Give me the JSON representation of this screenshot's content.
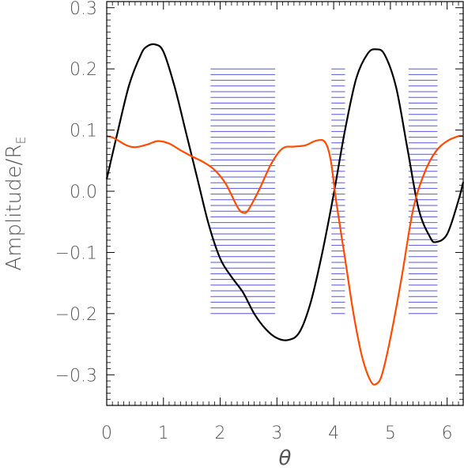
{
  "chart_data": {
    "type": "line",
    "title": "",
    "xlabel": "θ",
    "ylabel_parts": {
      "main": "Amplitude/R",
      "subscript": "E"
    },
    "xlim": [
      0,
      6.2832
    ],
    "ylim": [
      -0.35,
      0.31
    ],
    "xticks": [
      0,
      1,
      2,
      3,
      4,
      5,
      6
    ],
    "xtick_labels": [
      "0",
      "1",
      "2",
      "3",
      "4",
      "5",
      "6"
    ],
    "yticks": [
      -0.3,
      -0.2,
      -0.1,
      0.0,
      0.1,
      0.2,
      0.3
    ],
    "ytick_labels": [
      "−0.3",
      "−0.2",
      "−0.1",
      "0.0",
      "0.1",
      "0.2",
      "0.3"
    ],
    "grid": false,
    "legend": "none",
    "series": [
      {
        "color": "#000000",
        "x": [
          0.0,
          0.2,
          0.4,
          0.6,
          0.7,
          0.85,
          1.0,
          1.2,
          1.4,
          1.6,
          1.8,
          2.0,
          2.2,
          2.4,
          2.6,
          2.8,
          3.0,
          3.2,
          3.4,
          3.6,
          3.8,
          4.0,
          4.2,
          4.4,
          4.6,
          4.75,
          4.9,
          5.1,
          5.3,
          5.5,
          5.7,
          5.8,
          6.0,
          6.2,
          6.2832
        ],
        "y": [
          0.02,
          0.1,
          0.175,
          0.223,
          0.236,
          0.24,
          0.228,
          0.17,
          0.095,
          0.02,
          -0.055,
          -0.11,
          -0.14,
          -0.165,
          -0.2,
          -0.225,
          -0.24,
          -0.243,
          -0.23,
          -0.18,
          -0.1,
          -0.005,
          0.1,
          0.185,
          0.225,
          0.232,
          0.223,
          0.17,
          0.07,
          -0.03,
          -0.075,
          -0.083,
          -0.07,
          -0.015,
          0.015
        ]
      },
      {
        "color": "#ff4a00",
        "x": [
          0.0,
          0.1,
          0.2,
          0.35,
          0.5,
          0.7,
          0.9,
          1.1,
          1.3,
          1.5,
          1.7,
          1.9,
          2.1,
          2.3,
          2.4,
          2.5,
          2.7,
          2.9,
          3.1,
          3.3,
          3.5,
          3.7,
          3.85,
          3.95,
          4.05,
          4.2,
          4.35,
          4.5,
          4.65,
          4.75,
          4.85,
          5.0,
          5.2,
          5.4,
          5.6,
          5.8,
          6.0,
          6.2,
          6.2832
        ],
        "y": [
          0.09,
          0.088,
          0.083,
          0.075,
          0.072,
          0.076,
          0.082,
          0.078,
          0.067,
          0.057,
          0.048,
          0.035,
          0.012,
          -0.025,
          -0.035,
          -0.03,
          0.005,
          0.045,
          0.07,
          0.073,
          0.075,
          0.083,
          0.08,
          0.05,
          -0.02,
          -0.11,
          -0.2,
          -0.27,
          -0.31,
          -0.315,
          -0.3,
          -0.24,
          -0.14,
          -0.03,
          0.03,
          0.065,
          0.082,
          0.09,
          0.09
        ]
      }
    ],
    "hatch_bands": [
      {
        "x": [
          1.83,
          2.97
        ],
        "y": [
          -0.2,
          0.2
        ],
        "color": "#5555dd"
      },
      {
        "x": [
          3.96,
          4.2
        ],
        "y": [
          -0.2,
          0.2
        ],
        "color": "#5555dd"
      },
      {
        "x": [
          5.32,
          5.83
        ],
        "y": [
          -0.2,
          0.2
        ],
        "color": "#5555dd"
      }
    ]
  }
}
